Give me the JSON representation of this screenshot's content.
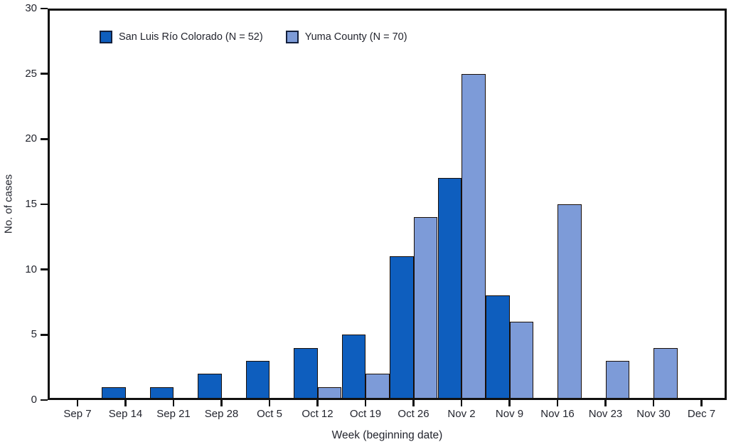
{
  "chart_data": {
    "type": "bar",
    "title": "",
    "xlabel": "Week (beginning date)",
    "ylabel": "No. of cases",
    "ylim": [
      0,
      30
    ],
    "yticks": [
      0,
      5,
      10,
      15,
      20,
      25,
      30
    ],
    "grid": false,
    "legend_position": "top-left-inside",
    "categories": [
      "Sep 7",
      "Sep 14",
      "Sep 21",
      "Sep 28",
      "Oct 5",
      "Oct 12",
      "Oct 19",
      "Oct 26",
      "Nov 2",
      "Nov 9",
      "Nov 16",
      "Nov 23",
      "Nov 30",
      "Dec 7"
    ],
    "series": [
      {
        "name": "San Luis Río Colorado (N = 52)",
        "color": "#0e5ebe",
        "values": [
          0,
          1,
          1,
          2,
          3,
          4,
          5,
          11,
          17,
          8,
          0,
          0,
          0,
          0
        ]
      },
      {
        "name": "Yuma County (N = 70)",
        "color": "#7d9bd8",
        "values": [
          0,
          0,
          0,
          0,
          0,
          1,
          2,
          14,
          25,
          6,
          15,
          3,
          4,
          0
        ]
      }
    ],
    "bar_border_color": "#1a0f08",
    "axis_color": "#111111",
    "text_color": "#23252e"
  }
}
